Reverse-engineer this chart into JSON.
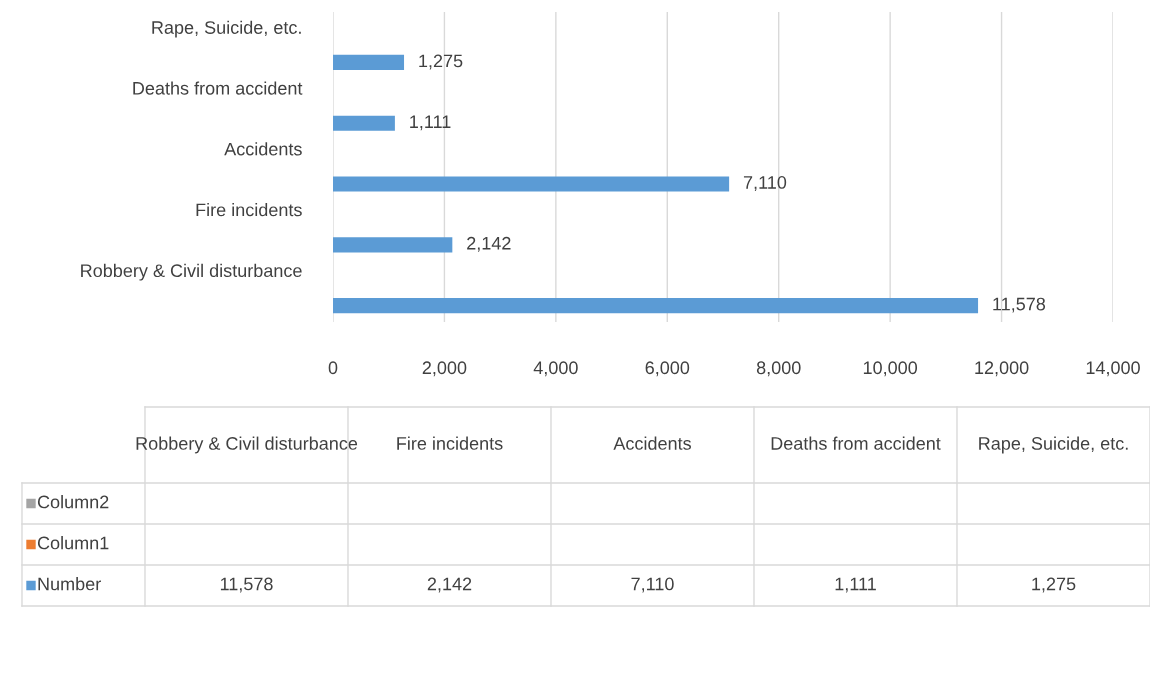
{
  "chart_data": {
    "type": "bar",
    "orientation": "horizontal",
    "categories": [
      "Rape, Suicide, etc.",
      "Deaths from accident",
      "Accidents",
      "Fire incidents",
      "Robbery & Civil disturbance"
    ],
    "series": [
      {
        "name": "Column2",
        "color": "#a5a5a5",
        "values": [
          null,
          null,
          null,
          null,
          null
        ]
      },
      {
        "name": "Column1",
        "color": "#ed7d31",
        "values": [
          null,
          null,
          null,
          null,
          null
        ]
      },
      {
        "name": "Number",
        "color": "#5b9bd5",
        "values": [
          1275,
          1111,
          7110,
          2142,
          11578
        ],
        "value_labels": [
          "1,275",
          "1,111",
          "7,110",
          "2,142",
          "11,578"
        ]
      }
    ],
    "xlim": [
      0,
      14000
    ],
    "xticks": [
      0,
      {
        "value": 2000,
        "label": "2,000"
      },
      {
        "value": 4000,
        "label": "4,000"
      },
      {
        "value": 6000,
        "label": "6,000"
      },
      {
        "value": 8000,
        "label": "8,000"
      },
      {
        "value": 10000,
        "label": "10,000"
      },
      {
        "value": 12000,
        "label": "12,000"
      },
      {
        "value": 14000,
        "label": "14,000"
      }
    ],
    "grid": "x",
    "legend": "bottom"
  }
}
